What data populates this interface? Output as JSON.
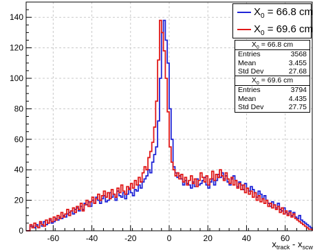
{
  "chart_data": {
    "type": "histogram",
    "xlim": [
      -74,
      74
    ],
    "ylim": [
      0,
      150
    ],
    "x_ticks": [
      -60,
      -40,
      -20,
      0,
      20,
      40,
      60
    ],
    "y_ticks": [
      0,
      20,
      40,
      60,
      80,
      100,
      120,
      140
    ],
    "xlabel_main": "x",
    "xlabel_sub1": "track",
    "xlabel_mid": " - x",
    "xlabel_sub2": "scw",
    "grid": true,
    "legend_position": "top-right",
    "bin_width": 1,
    "series": [
      {
        "name_main": "X",
        "name_sub": "0",
        "name_rest": " = 66.8 cm",
        "color": "#1f24d6",
        "x_start": -74,
        "values": [
          0,
          0,
          3,
          3,
          2,
          4,
          2,
          5,
          3,
          6,
          4,
          5,
          7,
          5,
          6,
          8,
          7,
          9,
          8,
          10,
          9,
          11,
          12,
          13,
          11,
          14,
          15,
          13,
          16,
          14,
          18,
          17,
          19,
          16,
          20,
          18,
          22,
          20,
          18,
          21,
          23,
          19,
          20,
          25,
          22,
          24,
          20,
          26,
          23,
          22,
          25,
          21,
          24,
          28,
          25,
          23,
          27,
          26,
          30,
          28,
          32,
          34,
          36,
          40,
          38,
          45,
          50,
          55,
          72,
          100,
          130,
          138,
          125,
          110,
          80,
          60,
          42,
          38,
          35,
          36,
          34,
          30,
          33,
          31,
          30,
          28,
          32,
          29,
          34,
          30,
          31,
          33,
          35,
          30,
          28,
          32,
          34,
          30,
          33,
          37,
          35,
          38,
          34,
          36,
          32,
          30,
          34,
          36,
          33,
          29,
          32,
          30,
          27,
          31,
          28,
          26,
          29,
          27,
          25,
          22,
          26,
          24,
          21,
          23,
          20,
          18,
          16,
          19,
          17,
          15,
          18,
          14,
          13,
          15,
          12,
          11,
          13,
          10,
          12,
          9,
          8,
          10,
          7,
          6,
          5,
          4,
          3,
          2
        ]
      },
      {
        "name_main": "X",
        "name_sub": "0",
        "name_rest": " = 69.6 cm",
        "color": "#e01818",
        "x_start": -74,
        "values": [
          0,
          0,
          4,
          2,
          5,
          3,
          2,
          6,
          4,
          3,
          7,
          5,
          8,
          6,
          9,
          7,
          10,
          8,
          12,
          9,
          11,
          14,
          10,
          13,
          15,
          12,
          16,
          14,
          18,
          13,
          17,
          20,
          16,
          19,
          22,
          18,
          21,
          24,
          20,
          23,
          26,
          22,
          25,
          21,
          27,
          24,
          22,
          28,
          25,
          30,
          26,
          24,
          29,
          27,
          31,
          28,
          33,
          30,
          35,
          32,
          38,
          42,
          40,
          48,
          52,
          58,
          68,
          85,
          112,
          138,
          130,
          118,
          100,
          78,
          55,
          45,
          40,
          36,
          38,
          34,
          37,
          32,
          35,
          30,
          33,
          36,
          31,
          34,
          29,
          33,
          38,
          35,
          32,
          36,
          30,
          34,
          39,
          33,
          37,
          35,
          40,
          36,
          33,
          38,
          34,
          31,
          35,
          30,
          33,
          28,
          31,
          27,
          30,
          25,
          28,
          24,
          26,
          22,
          25,
          20,
          23,
          19,
          21,
          18,
          20,
          16,
          18,
          15,
          17,
          14,
          16,
          12,
          15,
          11,
          13,
          10,
          12,
          9,
          11,
          8,
          7,
          6,
          5,
          4,
          3,
          2,
          1,
          1
        ]
      }
    ],
    "stats_boxes": [
      {
        "title_main": "X",
        "title_sub": "0",
        "title_rest": " = 66.8 cm",
        "rows": [
          {
            "label": "Entries",
            "value": "3568"
          },
          {
            "label": "Mean",
            "value": "3.455"
          },
          {
            "label": "Std Dev",
            "value": "27.68"
          }
        ]
      },
      {
        "title_main": "X",
        "title_sub": "0",
        "title_rest": " = 69.6 cm",
        "rows": [
          {
            "label": "Entries",
            "value": "3794"
          },
          {
            "label": "Mean",
            "value": "4.435"
          },
          {
            "label": "Std Dev",
            "value": "27.75"
          }
        ]
      }
    ]
  }
}
